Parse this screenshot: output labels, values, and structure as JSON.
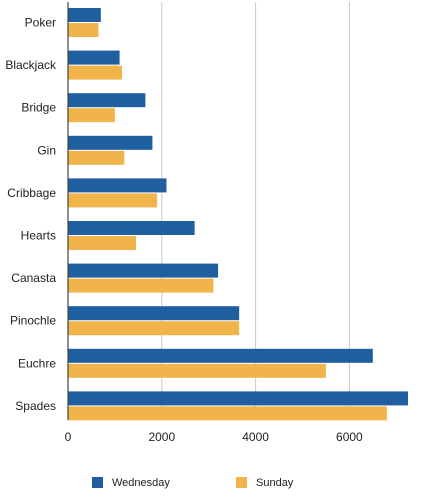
{
  "chart_data": {
    "type": "bar",
    "orientation": "horizontal",
    "categories": [
      "Poker",
      "Blackjack",
      "Bridge",
      "Gin",
      "Cribbage",
      "Hearts",
      "Canasta",
      "Pinochle",
      "Euchre",
      "Spades"
    ],
    "series": [
      {
        "name": "Wednesday",
        "color": "#1f5fa0",
        "values": [
          700,
          1100,
          1650,
          1800,
          2100,
          2700,
          3200,
          3650,
          6500,
          7250
        ]
      },
      {
        "name": "Sunday",
        "color": "#f0b44a",
        "values": [
          650,
          1150,
          1000,
          1200,
          1900,
          1450,
          3100,
          3650,
          5500,
          6800
        ]
      }
    ],
    "xlim": [
      0,
      7250
    ],
    "xticks": [
      0,
      2000,
      4000,
      6000
    ],
    "grid": true,
    "legend_position": "bottom",
    "title": "",
    "xlabel": "",
    "ylabel": ""
  }
}
